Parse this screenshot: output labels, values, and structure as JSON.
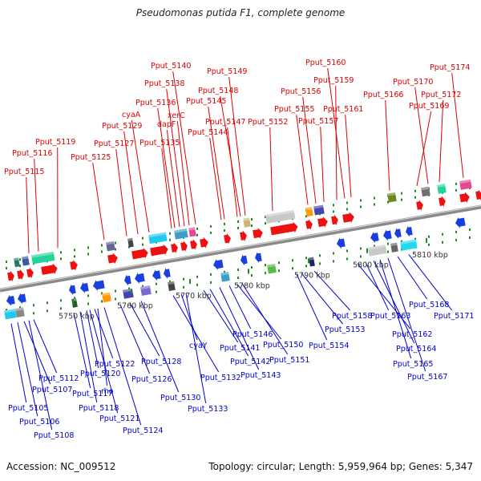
{
  "title": "Pseudomonas putida F1, complete genome",
  "footer": {
    "accession": "Accession: NC_009512",
    "info": "Topology: circular; Length: 5,959,964 bp; Genes: 5,347"
  },
  "colors": {
    "forward_label": "#dd0000",
    "reverse_label": "#0000cc",
    "forward_gene": "#ee1111",
    "reverse_gene": "#1a3fe0",
    "backbone": "#8a8a8a",
    "tick": "#1c8c1c"
  },
  "scale_labels": [
    "5750 kbp",
    "5760 kbp",
    "5770 kbp",
    "5780 kbp",
    "5790 kbp",
    "5800 kbp",
    "5810 kbp"
  ],
  "forward_genes": [
    "Pput_5115",
    "Pput_5116",
    "Pput_5119",
    "Pput_5125",
    "Pput_5127",
    "Pput_5129",
    "cyaA",
    "Pput_5135",
    "Pput_5136",
    "dapF",
    "Pput_5138",
    "xerC",
    "Pput_5140",
    "Pput_5144",
    "Pput_5145",
    "Pput_5147",
    "Pput_5148",
    "Pput_5149",
    "Pput_5152",
    "Pput_5155",
    "Pput_5156",
    "Pput_5157",
    "Pput_5159",
    "Pput_5160",
    "Pput_5161",
    "Pput_5166",
    "Pput_5169",
    "Pput_5170",
    "Pput_5172",
    "Pput_5174"
  ],
  "reverse_genes": [
    "Pput_5105",
    "Pput_5106",
    "Pput_5107",
    "Pput_5108",
    "Pput_5112",
    "Pput_5117",
    "Pput_5118",
    "Pput_5120",
    "Pput_5121",
    "Pput_5122",
    "rho",
    "Pput_5124",
    "Pput_5126",
    "Pput_5128",
    "Pput_5130",
    "cyaY",
    "Pput_5132",
    "Pput_5133",
    "Pput_5141",
    "Pput_5142",
    "Pput_5143",
    "Pput_5146",
    "Pput_5150",
    "Pput_5151",
    "Pput_5153",
    "Pput_5154",
    "Pput_5158",
    "Pput_5162",
    "Pput_5163",
    "Pput_5164",
    "Pput_5165",
    "Pput_5167",
    "Pput_5168",
    "Pput_5171"
  ]
}
